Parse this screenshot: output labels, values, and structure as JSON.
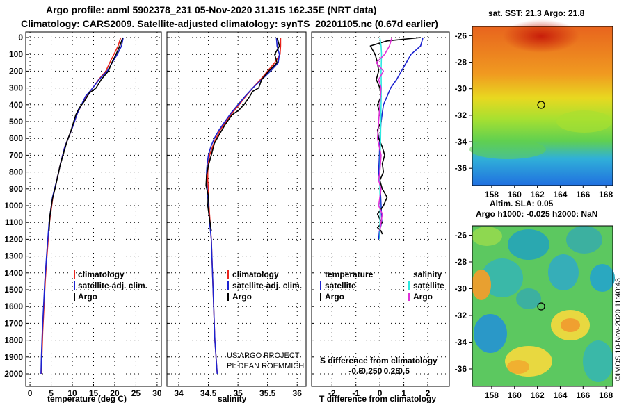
{
  "header": {
    "title_line1": "Argo profile: aoml 5902378_231 05-Nov-2020 31.31S 162.35E (NRT data)",
    "title_line2": "Climatology: CARS2009. Satellite-adjusted climatology: synTS_20201105.nc (0.67d earlier)"
  },
  "colors": {
    "climatology": "#e8241c",
    "satellite": "#1c22d0",
    "argo": "#000000",
    "sat_salinity": "#2ce8e0",
    "argo_salinity": "#e030d8"
  },
  "depth_axis": {
    "ticks": [
      "0",
      "100",
      "200",
      "300",
      "400",
      "500",
      "600",
      "700",
      "800",
      "900",
      "1000",
      "1100",
      "1200",
      "1300",
      "1400",
      "1500",
      "1600",
      "1700",
      "1800",
      "1900",
      "2000"
    ]
  },
  "chart_data": [
    {
      "id": "temperature",
      "type": "line",
      "xlabel": "temperature (deg C)",
      "ylabel": "depth",
      "xlim": [
        -1,
        31
      ],
      "ylim": [
        2050,
        0
      ],
      "xticks": [
        "0",
        "5",
        "10",
        "15",
        "20",
        "25",
        "30"
      ],
      "series": [
        {
          "name": "climatology",
          "color": "#e8241c",
          "x": [
            21.4,
            20.8,
            19.8,
            18.8,
            17.9,
            16.2,
            14.8,
            13.2,
            11.2,
            9.8,
            8.2,
            7.2,
            6.3,
            5.4,
            4.6,
            4.0,
            3.6,
            3.3,
            3.0,
            2.8,
            2.7
          ],
          "y": [
            0,
            50,
            100,
            150,
            200,
            250,
            300,
            350,
            450,
            550,
            650,
            750,
            850,
            950,
            1100,
            1300,
            1450,
            1600,
            1750,
            1900,
            2000
          ]
        },
        {
          "name": "satellite-adj. clim.",
          "color": "#1c22d0",
          "x": [
            22.0,
            21.6,
            20.6,
            19.4,
            18.2,
            16.3,
            14.8,
            13.1,
            11.2,
            9.8,
            8.2,
            7.2,
            6.3,
            5.3,
            4.5,
            3.9,
            3.5,
            3.2,
            2.9,
            2.7,
            2.6
          ],
          "y": [
            0,
            50,
            100,
            150,
            200,
            250,
            300,
            350,
            450,
            550,
            650,
            750,
            850,
            950,
            1100,
            1300,
            1450,
            1600,
            1750,
            1900,
            2000
          ]
        },
        {
          "name": "Argo",
          "color": "#000000",
          "x": [
            21.9,
            21.2,
            20.3,
            19.3,
            18.5,
            16.8,
            15.6,
            14.0,
            12.8,
            11.6,
            10.8,
            9.6,
            8.7,
            7.8,
            7.1,
            6.6,
            5.9,
            5.3,
            4.7,
            4.5
          ],
          "y": [
            0,
            50,
            100,
            150,
            200,
            250,
            300,
            330,
            380,
            420,
            460,
            560,
            620,
            700,
            760,
            820,
            900,
            960,
            1060,
            1150
          ]
        }
      ],
      "legend": [
        "climatology",
        "satellite-adj. clim.",
        "Argo"
      ]
    },
    {
      "id": "salinity",
      "type": "line",
      "xlabel": "salinity",
      "ylabel": "depth",
      "xlim": [
        33.8,
        36.15
      ],
      "ylim": [
        2050,
        0
      ],
      "xticks": [
        "34",
        "34.5",
        "35",
        "35.5",
        "36"
      ],
      "series": [
        {
          "name": "climatology",
          "color": "#e8241c",
          "x": [
            35.72,
            35.72,
            35.71,
            35.62,
            35.5,
            35.38,
            35.25,
            35.13,
            35.02,
            34.9,
            34.8,
            34.7,
            34.63,
            34.57,
            34.52,
            34.5,
            34.49,
            34.49,
            34.5,
            34.51,
            34.53,
            34.55,
            34.57,
            34.59,
            34.61,
            34.63,
            34.65
          ],
          "y": [
            0,
            50,
            100,
            150,
            200,
            250,
            300,
            350,
            400,
            450,
            500,
            550,
            600,
            650,
            700,
            750,
            800,
            850,
            900,
            1000,
            1100,
            1200,
            1400,
            1600,
            1800,
            1900,
            2000
          ]
        },
        {
          "name": "satellite-adj. clim.",
          "color": "#1c22d0",
          "x": [
            35.65,
            35.66,
            35.7,
            35.68,
            35.55,
            35.4,
            35.25,
            35.12,
            35.0,
            34.88,
            34.78,
            34.68,
            34.6,
            34.54,
            34.5,
            34.48,
            34.47,
            34.47,
            34.48,
            34.5,
            34.52,
            34.55,
            34.57,
            34.59,
            34.61,
            34.63,
            34.65
          ],
          "y": [
            0,
            50,
            100,
            150,
            200,
            250,
            300,
            350,
            400,
            450,
            500,
            550,
            600,
            650,
            700,
            750,
            800,
            850,
            900,
            1000,
            1100,
            1200,
            1400,
            1600,
            1800,
            1900,
            2000
          ]
        },
        {
          "name": "Argo",
          "color": "#000000",
          "x": [
            35.66,
            35.7,
            35.62,
            35.66,
            35.52,
            35.4,
            35.35,
            35.25,
            35.2,
            35.1,
            35.02,
            34.9,
            34.78,
            34.68,
            34.6,
            34.55,
            34.5,
            34.47,
            34.46,
            34.5,
            34.49,
            34.52,
            34.55
          ],
          "y": [
            0,
            50,
            100,
            150,
            200,
            250,
            300,
            320,
            350,
            400,
            430,
            460,
            520,
            580,
            630,
            700,
            760,
            820,
            880,
            940,
            1000,
            1080,
            1150
          ]
        }
      ],
      "legend": [
        "climatology",
        "satellite-adj. clim.",
        "Argo"
      ]
    },
    {
      "id": "difference",
      "type": "line",
      "xlabel": "T difference from climatology",
      "ylabel": "depth",
      "xlim": [
        -2.85,
        2.9
      ],
      "ylim": [
        2050,
        0
      ],
      "xticks": [
        "-2",
        "-1",
        "0",
        "1",
        "2"
      ],
      "top_xlabel": "S difference from climatology",
      "top_xticks": [
        "-0.5",
        "-0.25",
        "0",
        "0.25",
        "0.5"
      ],
      "series": [
        {
          "name": "satellite (temperature)",
          "color": "#1c22d0",
          "x": [
            1.8,
            1.7,
            1.3,
            1.1,
            0.9,
            0.7,
            0.45,
            0.3,
            0.15,
            0.05,
            0.0,
            -0.02,
            -0.05,
            0.02,
            0.05,
            0.08,
            -0.02,
            -0.05
          ],
          "y": [
            0,
            50,
            100,
            150,
            200,
            250,
            300,
            350,
            400,
            500,
            600,
            700,
            800,
            900,
            1000,
            1100,
            1150,
            1200
          ]
        },
        {
          "name": "Argo (temperature)",
          "color": "#000000",
          "x": [
            1.7,
            0.3,
            -0.4,
            -0.2,
            -0.1,
            -0.05,
            -0.15,
            0.0,
            0.05,
            -0.1,
            0.0,
            0.05,
            -0.1,
            -0.05,
            0.1,
            0.2,
            0.1,
            0.15,
            0.0,
            0.1,
            0.3,
            0.15,
            -0.1,
            0.0,
            0.1,
            -0.1,
            0.05,
            0.1
          ],
          "y": [
            0,
            20,
            50,
            100,
            150,
            200,
            250,
            300,
            350,
            400,
            450,
            500,
            550,
            600,
            650,
            700,
            750,
            800,
            850,
            900,
            950,
            1000,
            1050,
            1080,
            1100,
            1130,
            1150,
            1170
          ]
        },
        {
          "name": "satellite (salinity)",
          "color": "#2ce8e0",
          "x": [
            0.0,
            0.05,
            0.07,
            0.05,
            0.06,
            0.05,
            0.04,
            0.03,
            0.01,
            0.0,
            0.0,
            0.01,
            0.0
          ],
          "y": [
            0,
            50,
            100,
            200,
            300,
            400,
            500,
            600,
            700,
            800,
            900,
            1000,
            1200
          ]
        },
        {
          "name": "Argo (salinity)",
          "color": "#e030d8",
          "x": [
            0.5,
            0.4,
            0.2,
            -0.15,
            0.15,
            -0.05,
            0.05,
            0.0,
            -0.05,
            -0.1,
            0.05,
            0.0,
            -0.05,
            0.05,
            0.0,
            -0.05,
            0.1,
            0.0
          ],
          "y": [
            0,
            50,
            100,
            150,
            200,
            250,
            300,
            400,
            500,
            600,
            700,
            800,
            850,
            900,
            950,
            1000,
            1050,
            1150
          ]
        }
      ],
      "legend_temperature": {
        "title": "temperature",
        "items": [
          "satellite",
          "Argo"
        ]
      },
      "legend_salinity": {
        "title": "salinity",
        "items": [
          "satellite",
          "Argo"
        ]
      }
    }
  ],
  "credit": {
    "line1": "US ARGO PROJECT",
    "line2": "PI: DEAN ROEMMICH"
  },
  "maps": [
    {
      "title": "sat. SST: 21.3 Argo: 21.8",
      "lat_ticks": [
        "-26",
        "-28",
        "-30",
        "-32",
        "-34",
        "-36"
      ],
      "lon_ticks": [
        "158",
        "160",
        "162",
        "164",
        "166",
        "168"
      ]
    },
    {
      "title_line1": "Altim. SLA: 0.05",
      "title_line2": "Argo h1000: -0.025 h2000: NaN",
      "lat_ticks": [
        "-26",
        "-28",
        "-30",
        "-32",
        "-34",
        "-36"
      ],
      "lon_ticks": [
        "158",
        "160",
        "162",
        "164",
        "166",
        "168"
      ]
    }
  ],
  "watermark": "©IMOS 10-Nov-2020 11:40:43"
}
